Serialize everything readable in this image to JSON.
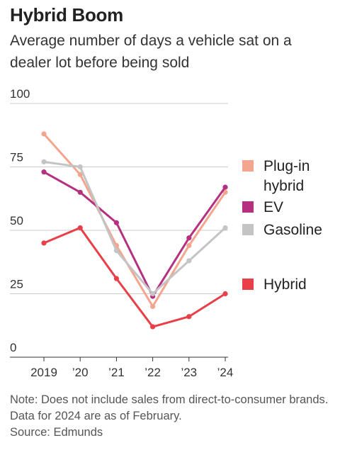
{
  "chart_data": {
    "type": "line",
    "title": "Hybrid Boom",
    "subtitle": "Average number of days a vehicle sat on a dealer lot before being sold",
    "xlabel": "",
    "ylabel": "",
    "categories": [
      "2019",
      "’20",
      "’21",
      "’22",
      "’23",
      "’24"
    ],
    "y_ticks": [
      0,
      25,
      50,
      75,
      100
    ],
    "ylim": [
      0,
      100
    ],
    "grid": true,
    "legend_position": "right",
    "series": [
      {
        "name": "Plug-in hybrid",
        "color": "#f4a58e",
        "values": [
          88,
          72,
          44,
          20,
          44,
          65
        ]
      },
      {
        "name": "EV",
        "color": "#b5307f",
        "values": [
          73,
          65,
          53,
          24,
          47,
          67
        ]
      },
      {
        "name": "Gasoline",
        "color": "#c4c4c4",
        "values": [
          77,
          75,
          42,
          25,
          38,
          51
        ]
      },
      {
        "name": "Hybrid",
        "color": "#e83f48",
        "values": [
          45,
          51,
          31,
          12,
          16,
          25
        ]
      }
    ],
    "note": "Note: Does not include sales from direct-to-consumer brands. Data for 2024 are as of February.",
    "source": "Source: Edmunds"
  },
  "legend": [
    {
      "lines": [
        "Plug-in",
        "hybrid"
      ],
      "color": "#f4a58e"
    },
    {
      "lines": [
        "EV"
      ],
      "color": "#b5307f"
    },
    {
      "lines": [
        "Gasoline"
      ],
      "color": "#c4c4c4"
    },
    {
      "lines": [
        "Hybrid"
      ],
      "color": "#e83f48"
    }
  ]
}
